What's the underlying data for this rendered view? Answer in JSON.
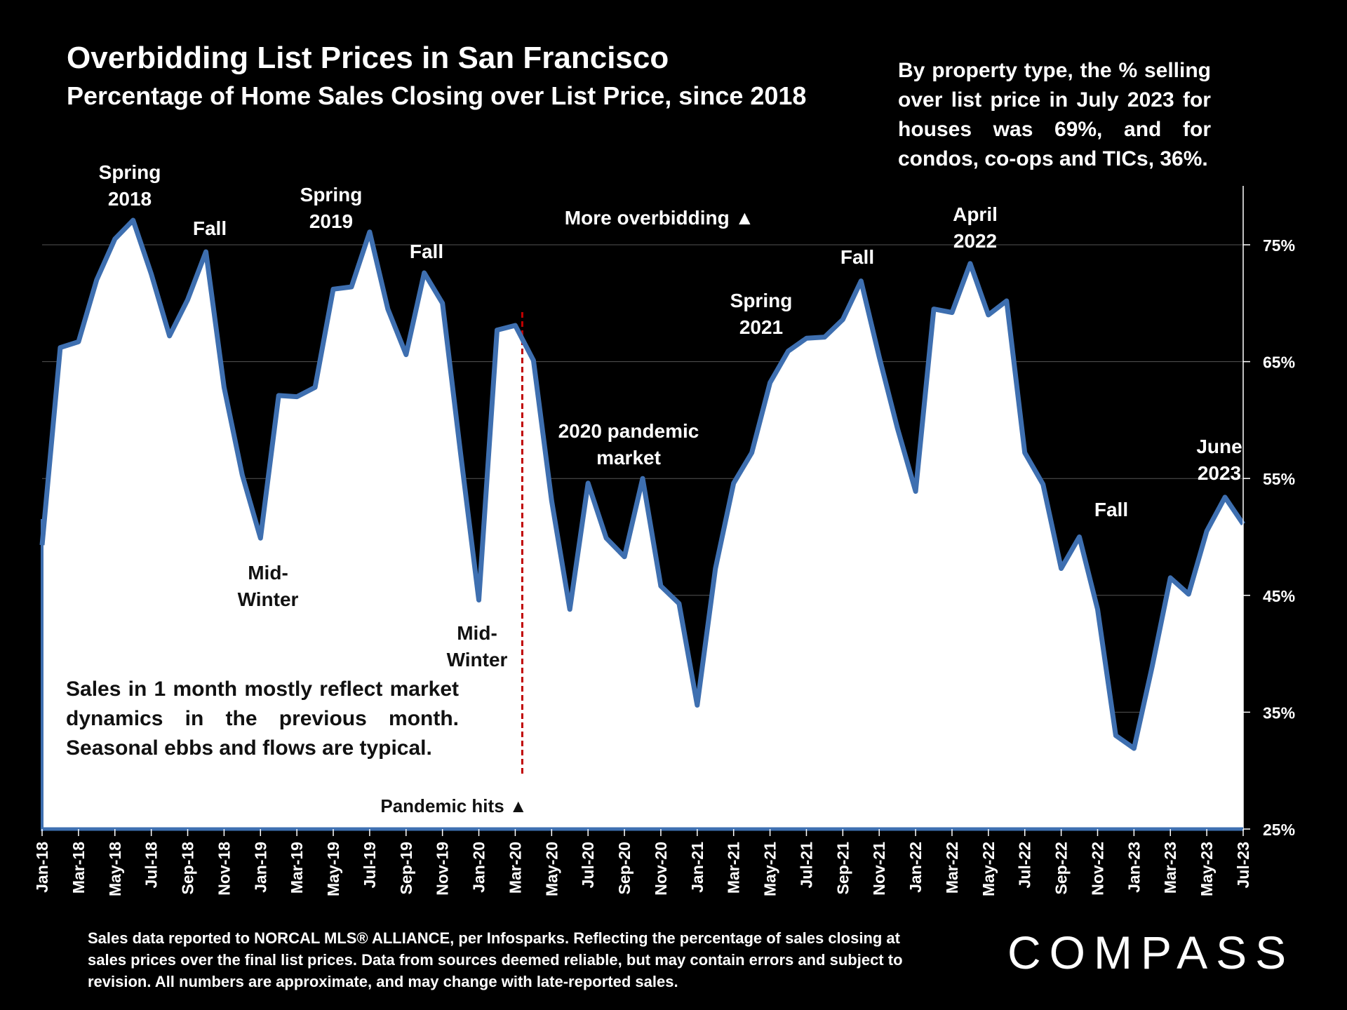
{
  "header": {
    "title": "Overbidding List Prices in San Francisco",
    "subtitle": "Percentage of Home Sales Closing over List Price, since 2018"
  },
  "side_note": "By property type, the % selling over list price in July 2023 for houses was 69%, and for condos, co-ops and TICs, 36%.",
  "inset_note": "Sales in 1 month mostly reflect market dynamics in the previous month. Seasonal ebbs and flows are typical.",
  "footer_text": "Sales data reported to NORCAL MLS® ALLIANCE, per Infosparks. Reflecting the percentage of sales closing at sales prices over the final list prices. Data from sources deemed reliable, but may contain errors and subject to revision. All numbers are approximate, and may change with late-reported sales.",
  "logo_text": "COMPASS",
  "colors": {
    "line": "#3e6fb0",
    "fill": "#ffffff",
    "background": "#000000",
    "pandemic_line": "#c00000",
    "grid": "#555555"
  },
  "chart_data": {
    "type": "area",
    "x": [
      "Jan-18",
      "Feb-18",
      "Mar-18",
      "Apr-18",
      "May-18",
      "Jun-18",
      "Jul-18",
      "Aug-18",
      "Sep-18",
      "Oct-18",
      "Nov-18",
      "Dec-18",
      "Jan-19",
      "Feb-19",
      "Mar-19",
      "Apr-19",
      "May-19",
      "Jun-19",
      "Jul-19",
      "Aug-19",
      "Sep-19",
      "Oct-19",
      "Nov-19",
      "Dec-19",
      "Jan-20",
      "Feb-20",
      "Mar-20",
      "Apr-20",
      "May-20",
      "Jun-20",
      "Jul-20",
      "Aug-20",
      "Sep-20",
      "Oct-20",
      "Nov-20",
      "Dec-20",
      "Jan-21",
      "Feb-21",
      "Mar-21",
      "Apr-21",
      "May-21",
      "Jun-21",
      "Jul-21",
      "Aug-21",
      "Sep-21",
      "Oct-21",
      "Nov-21",
      "Dec-21",
      "Jan-22",
      "Feb-22",
      "Mar-22",
      "Apr-22",
      "May-22",
      "Jun-22",
      "Jul-22",
      "Aug-22",
      "Sep-22",
      "Oct-22",
      "Nov-22",
      "Dec-22",
      "Jan-23",
      "Feb-23",
      "Mar-23",
      "Apr-23",
      "May-23",
      "Jun-23",
      "Jul-23"
    ],
    "x_tick_labels": [
      "Jan-18",
      "Mar-18",
      "May-18",
      "Jul-18",
      "Sep-18",
      "Nov-18",
      "Jan-19",
      "Mar-19",
      "May-19",
      "Jul-19",
      "Sep-19",
      "Nov-19",
      "Jan-20",
      "Mar-20",
      "May-20",
      "Jul-20",
      "Sep-20",
      "Nov-20",
      "Jan-21",
      "Mar-21",
      "May-21",
      "Jul-21",
      "Sep-21",
      "Nov-21",
      "Jan-22",
      "Mar-22",
      "May-22",
      "Jul-22",
      "Sep-22",
      "Nov-22",
      "Jan-23",
      "Mar-23",
      "May-23",
      "Jul-23"
    ],
    "values": [
      49.3,
      66.2,
      66.7,
      72.0,
      75.5,
      77.1,
      72.5,
      67.2,
      70.3,
      74.4,
      62.8,
      55.3,
      49.9,
      62.1,
      62.0,
      62.8,
      71.2,
      71.4,
      76.1,
      69.5,
      65.6,
      72.6,
      70.0,
      57.1,
      44.6,
      67.7,
      68.1,
      65.1,
      53.1,
      43.8,
      54.6,
      49.9,
      48.3,
      55.0,
      45.8,
      44.3,
      35.6,
      47.3,
      54.6,
      57.2,
      63.2,
      65.9,
      67.0,
      67.1,
      68.6,
      71.9,
      65.4,
      59.3,
      53.9,
      69.5,
      69.2,
      73.4,
      69.0,
      70.2,
      57.2,
      54.5,
      47.3,
      50.0,
      43.8,
      33.0,
      31.9,
      38.9,
      46.5,
      45.1,
      50.5,
      53.4,
      51.1
    ],
    "ylim": [
      25,
      80
    ],
    "y_ticks": [
      "25%",
      "35%",
      "45%",
      "55%",
      "65%",
      "75%"
    ],
    "y_tick_values": [
      25,
      35,
      45,
      55,
      65,
      75
    ],
    "grid": true,
    "vertical_marker": {
      "x": "Mar-20",
      "label": "Pandemic hits ▲"
    },
    "annotations": [
      {
        "text": "Spring 2018",
        "lines": [
          "Spring",
          "2018"
        ]
      },
      {
        "text": "Fall",
        "lines": [
          "Fall"
        ]
      },
      {
        "text": "Spring 2019",
        "lines": [
          "Spring",
          "2019"
        ]
      },
      {
        "text": "Fall",
        "lines": [
          "Fall"
        ]
      },
      {
        "text": "More overbidding ▲",
        "lines": [
          "More overbidding ▲"
        ]
      },
      {
        "text": "Mid-Winter",
        "lines": [
          "Mid-",
          "Winter"
        ]
      },
      {
        "text": "Mid-Winter",
        "lines": [
          "Mid-",
          "Winter"
        ]
      },
      {
        "text": "2020 pandemic market",
        "lines": [
          "2020 pandemic",
          "market"
        ]
      },
      {
        "text": "Mid-Winter",
        "lines": [
          "Mid-",
          "Winter"
        ]
      },
      {
        "text": "Spring 2021",
        "lines": [
          "Spring",
          "2021"
        ]
      },
      {
        "text": "Fall",
        "lines": [
          "Fall"
        ]
      },
      {
        "text": "April 2022",
        "lines": [
          "April",
          "2022"
        ]
      },
      {
        "text": "Mid-Winter",
        "lines": [
          "Mid-",
          "Winter"
        ]
      },
      {
        "text": "Fall",
        "lines": [
          "Fall"
        ]
      },
      {
        "text": "June 2023",
        "lines": [
          "June",
          "2023"
        ]
      },
      {
        "text": "Mid-Winter",
        "lines": [
          "Mid-",
          "Winter"
        ]
      }
    ]
  }
}
